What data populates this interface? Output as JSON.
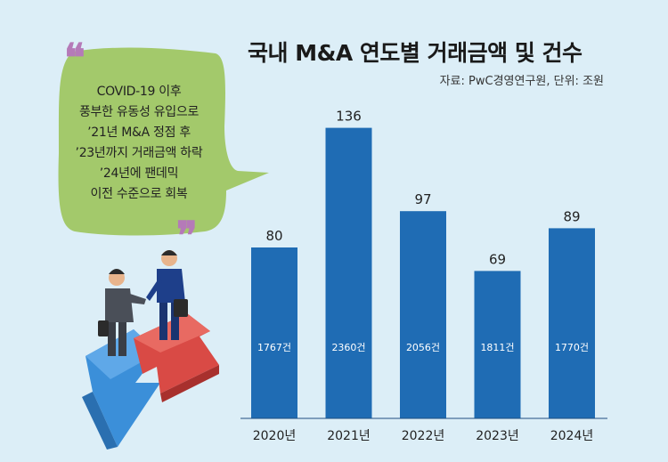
{
  "title": "국내 M&A 연도별 거래금액 및 건수",
  "source": "자료: PwC경영연구원, 단위: 조원",
  "bubble": {
    "lines": [
      "COVID-19 이후",
      "풍부한 유동성 유입으로",
      "’21년 M&A 정점 후",
      "’23년까지 거래금액 하락",
      "’24년에 팬데믹",
      "이전 수준으로 회복"
    ],
    "open_quote": "❝",
    "close_quote": "❞"
  },
  "colors": {
    "bar": "#1f6cb4",
    "background": "#dceef7",
    "bubble": "#a3c96b",
    "quote": "#b57ab8"
  },
  "chart_data": {
    "type": "bar",
    "title": "국내 M&A 연도별 거래금액 및 건수",
    "categories": [
      "2020년",
      "2021년",
      "2022년",
      "2023년",
      "2024년"
    ],
    "values": [
      80,
      136,
      97,
      69,
      89
    ],
    "deal_counts": [
      "1767건",
      "2360건",
      "2056건",
      "1811건",
      "1770건"
    ],
    "unit": "조원",
    "ylim": [
      0,
      150
    ],
    "grid": false,
    "legend": "none"
  }
}
